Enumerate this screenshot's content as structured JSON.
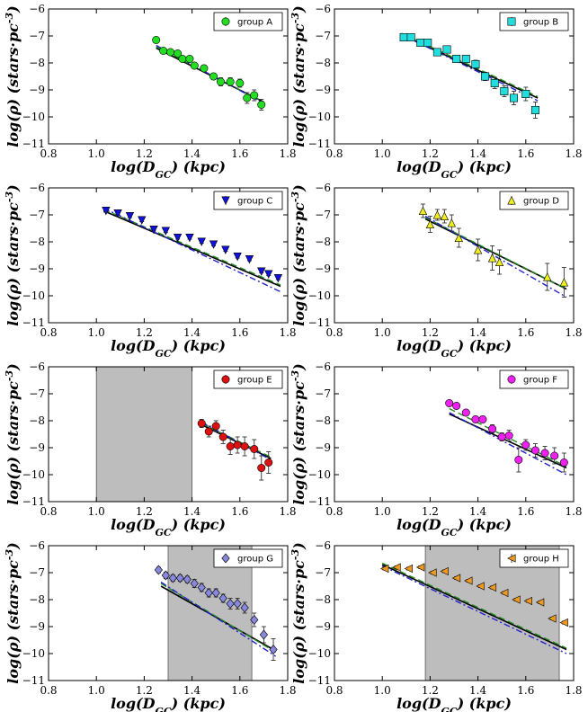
{
  "chart_data": [
    {
      "type": "scatter",
      "legend_label": "group A",
      "marker": "circle",
      "color": "#22dd22",
      "xlabel": "log(D_GC) (kpc)",
      "ylabel": "log(ρ) (stars·pc^-3)",
      "xlim": [
        0.8,
        1.8
      ],
      "ylim": [
        -11,
        -6
      ],
      "xticks": [
        "0.8",
        "1.0",
        "1.2",
        "1.4",
        "1.6",
        "1.8"
      ],
      "yticks": [
        "−6",
        "−7",
        "−8",
        "−9",
        "−10",
        "−11"
      ],
      "legend_position": "top-right",
      "shaded_x": null,
      "points": [
        [
          1.25,
          -7.15,
          0.1
        ],
        [
          1.28,
          -7.55,
          0.1
        ],
        [
          1.31,
          -7.6,
          0.1
        ],
        [
          1.34,
          -7.65,
          0.1
        ],
        [
          1.36,
          -7.85,
          0.1
        ],
        [
          1.39,
          -7.85,
          0.1
        ],
        [
          1.41,
          -8.1,
          0.1
        ],
        [
          1.45,
          -8.2,
          0.12
        ],
        [
          1.49,
          -8.5,
          0.12
        ],
        [
          1.52,
          -8.7,
          0.15
        ],
        [
          1.56,
          -8.7,
          0.15
        ],
        [
          1.6,
          -8.75,
          0.15
        ],
        [
          1.63,
          -9.3,
          0.2
        ],
        [
          1.66,
          -9.2,
          0.2
        ],
        [
          1.69,
          -9.55,
          0.2
        ]
      ],
      "fit_lines": [
        {
          "style": "solid",
          "color": "#000000",
          "x": [
            1.25,
            1.7
          ],
          "y": [
            -7.45,
            -9.45
          ]
        },
        {
          "style": "dashed",
          "color": "#228b22",
          "x": [
            1.25,
            1.7
          ],
          "y": [
            -7.4,
            -9.45
          ]
        },
        {
          "style": "dashdot",
          "color": "#2222cc",
          "x": [
            1.25,
            1.7
          ],
          "y": [
            -7.35,
            -9.5
          ]
        }
      ]
    },
    {
      "type": "scatter",
      "legend_label": "group B",
      "marker": "square",
      "color": "#22dddd",
      "xlabel": "log(D_GC) (kpc)",
      "ylabel": "log(ρ) (stars·pc^-3)",
      "xlim": [
        0.8,
        1.8
      ],
      "ylim": [
        -11,
        -6
      ],
      "xticks": [
        "0.8",
        "1.0",
        "1.2",
        "1.4",
        "1.6",
        "1.8"
      ],
      "yticks": [
        "−6",
        "−7",
        "−8",
        "−9",
        "−10",
        "−11"
      ],
      "legend_position": "top-right",
      "shaded_x": null,
      "points": [
        [
          1.09,
          -7.05,
          0.1
        ],
        [
          1.12,
          -7.05,
          0.1
        ],
        [
          1.16,
          -7.25,
          0.1
        ],
        [
          1.19,
          -7.25,
          0.1
        ],
        [
          1.23,
          -7.6,
          0.12
        ],
        [
          1.27,
          -7.5,
          0.12
        ],
        [
          1.31,
          -7.85,
          0.12
        ],
        [
          1.35,
          -7.85,
          0.12
        ],
        [
          1.39,
          -8.05,
          0.15
        ],
        [
          1.43,
          -8.5,
          0.15
        ],
        [
          1.47,
          -8.75,
          0.2
        ],
        [
          1.51,
          -9.05,
          0.2
        ],
        [
          1.55,
          -9.3,
          0.25
        ],
        [
          1.6,
          -9.15,
          0.25
        ],
        [
          1.64,
          -9.75,
          0.3
        ]
      ],
      "fit_lines": [
        {
          "style": "solid",
          "color": "#000000",
          "x": [
            1.08,
            1.65
          ],
          "y": [
            -6.95,
            -9.3
          ]
        },
        {
          "style": "dashed",
          "color": "#228b22",
          "x": [
            1.08,
            1.65
          ],
          "y": [
            -6.9,
            -9.25
          ]
        },
        {
          "style": "dashdot",
          "color": "#2222cc",
          "x": [
            1.08,
            1.65
          ],
          "y": [
            -6.95,
            -9.4
          ]
        }
      ]
    },
    {
      "type": "scatter",
      "legend_label": "group C",
      "marker": "triangle-down",
      "color": "#1111dd",
      "xlabel": "log(D_GC) (kpc)",
      "ylabel": "log(ρ) (stars·pc^-3)",
      "xlim": [
        0.8,
        1.8
      ],
      "ylim": [
        -11,
        -6
      ],
      "xticks": [
        "0.8",
        "1.0",
        "1.2",
        "1.4",
        "1.6",
        "1.8"
      ],
      "yticks": [
        "−6",
        "−7",
        "−8",
        "−9",
        "−10",
        "−11"
      ],
      "legend_position": "top-right",
      "shaded_x": null,
      "points": [
        [
          1.04,
          -6.85,
          0.05
        ],
        [
          1.09,
          -6.95,
          0.05
        ],
        [
          1.14,
          -7.05,
          0.05
        ],
        [
          1.19,
          -7.2,
          0.05
        ],
        [
          1.24,
          -7.55,
          0.05
        ],
        [
          1.29,
          -7.6,
          0.05
        ],
        [
          1.34,
          -7.85,
          0.05
        ],
        [
          1.39,
          -7.85,
          0.05
        ],
        [
          1.44,
          -8.0,
          0.05
        ],
        [
          1.49,
          -8.1,
          0.05
        ],
        [
          1.54,
          -8.3,
          0.05
        ],
        [
          1.59,
          -8.55,
          0.05
        ],
        [
          1.64,
          -8.65,
          0.05
        ],
        [
          1.69,
          -9.1,
          0.05
        ],
        [
          1.72,
          -9.2,
          0.05
        ],
        [
          1.76,
          -9.35,
          0.05
        ]
      ],
      "fit_lines": [
        {
          "style": "solid",
          "color": "#000000",
          "x": [
            1.03,
            1.77
          ],
          "y": [
            -6.85,
            -9.65
          ]
        },
        {
          "style": "dashed",
          "color": "#228b22",
          "x": [
            1.03,
            1.77
          ],
          "y": [
            -6.8,
            -9.6
          ]
        },
        {
          "style": "dashdot",
          "color": "#2222cc",
          "x": [
            1.03,
            1.77
          ],
          "y": [
            -6.75,
            -9.85
          ]
        }
      ]
    },
    {
      "type": "scatter",
      "legend_label": "group D",
      "marker": "triangle-up",
      "color": "#eeee22",
      "xlabel": "log(D_GC) (kpc)",
      "ylabel": "log(ρ) (stars·pc^-3)",
      "xlim": [
        0.8,
        1.8
      ],
      "ylim": [
        -11,
        -6
      ],
      "xticks": [
        "0.8",
        "1.0",
        "1.2",
        "1.4",
        "1.6",
        "1.8"
      ],
      "yticks": [
        "−6",
        "−7",
        "−8",
        "−9",
        "−10",
        "−11"
      ],
      "legend_position": "top-right",
      "shaded_x": null,
      "points": [
        [
          1.17,
          -6.85,
          0.25
        ],
        [
          1.2,
          -7.35,
          0.3
        ],
        [
          1.23,
          -7.0,
          0.2
        ],
        [
          1.26,
          -7.05,
          0.25
        ],
        [
          1.29,
          -7.3,
          0.3
        ],
        [
          1.32,
          -7.85,
          0.35
        ],
        [
          1.4,
          -8.3,
          0.4
        ],
        [
          1.46,
          -8.6,
          0.45
        ],
        [
          1.49,
          -8.75,
          0.45
        ],
        [
          1.69,
          -9.3,
          0.5
        ],
        [
          1.76,
          -9.5,
          0.55
        ]
      ],
      "fit_lines": [
        {
          "style": "solid",
          "color": "#000000",
          "x": [
            1.18,
            1.77
          ],
          "y": [
            -7.15,
            -9.75
          ]
        },
        {
          "style": "dashed",
          "color": "#228b22",
          "x": [
            1.18,
            1.77
          ],
          "y": [
            -7.1,
            -9.75
          ]
        },
        {
          "style": "dashdot",
          "color": "#2222cc",
          "x": [
            1.18,
            1.77
          ],
          "y": [
            -7.05,
            -10.05
          ]
        }
      ]
    },
    {
      "type": "scatter",
      "legend_label": "group E",
      "marker": "circle",
      "color": "#dd1111",
      "xlabel": "log(D_GC) (kpc)",
      "ylabel": "log(ρ) (stars·pc^-3)",
      "xlim": [
        0.8,
        1.8
      ],
      "ylim": [
        -11,
        -6
      ],
      "xticks": [
        "0.8",
        "1.0",
        "1.2",
        "1.4",
        "1.6",
        "1.8"
      ],
      "yticks": [
        "−6",
        "−7",
        "−8",
        "−9",
        "−10",
        "−11"
      ],
      "legend_position": "top-right",
      "shaded_x": [
        1.0,
        1.4
      ],
      "points": [
        [
          1.44,
          -8.1,
          0.15
        ],
        [
          1.47,
          -8.4,
          0.2
        ],
        [
          1.5,
          -8.2,
          0.2
        ],
        [
          1.53,
          -8.6,
          0.25
        ],
        [
          1.56,
          -8.95,
          0.3
        ],
        [
          1.59,
          -8.9,
          0.3
        ],
        [
          1.62,
          -8.95,
          0.35
        ],
        [
          1.66,
          -9.05,
          0.35
        ],
        [
          1.69,
          -9.75,
          0.45
        ],
        [
          1.72,
          -9.55,
          0.4
        ]
      ],
      "fit_lines": [
        {
          "style": "solid",
          "color": "#000000",
          "x": [
            1.44,
            1.73
          ],
          "y": [
            -8.15,
            -9.4
          ]
        },
        {
          "style": "dashed",
          "color": "#228b22",
          "x": [
            1.44,
            1.73
          ],
          "y": [
            -8.1,
            -9.35
          ]
        },
        {
          "style": "dashdot",
          "color": "#2222cc",
          "x": [
            1.44,
            1.73
          ],
          "y": [
            -8.05,
            -9.45
          ]
        }
      ]
    },
    {
      "type": "scatter",
      "legend_label": "group F",
      "marker": "circle",
      "color": "#ee22ee",
      "xlabel": "log(D_GC) (kpc)",
      "ylabel": "log(ρ) (stars·pc^-3)",
      "xlim": [
        0.8,
        1.8
      ],
      "ylim": [
        -11,
        -6
      ],
      "xticks": [
        "0.8",
        "1.0",
        "1.2",
        "1.4",
        "1.6",
        "1.8"
      ],
      "yticks": [
        "−6",
        "−7",
        "−8",
        "−9",
        "−10",
        "−11"
      ],
      "legend_position": "top-right",
      "shaded_x": null,
      "points": [
        [
          1.28,
          -7.35,
          0.08
        ],
        [
          1.31,
          -7.45,
          0.1
        ],
        [
          1.35,
          -7.7,
          0.1
        ],
        [
          1.39,
          -7.95,
          0.12
        ],
        [
          1.42,
          -7.95,
          0.12
        ],
        [
          1.46,
          -8.3,
          0.15
        ],
        [
          1.5,
          -8.6,
          0.15
        ],
        [
          1.53,
          -8.55,
          0.2
        ],
        [
          1.57,
          -9.45,
          0.45
        ],
        [
          1.6,
          -8.9,
          0.2
        ],
        [
          1.64,
          -9.1,
          0.25
        ],
        [
          1.68,
          -9.2,
          0.25
        ],
        [
          1.72,
          -9.3,
          0.3
        ],
        [
          1.76,
          -9.55,
          0.35
        ]
      ],
      "fit_lines": [
        {
          "style": "solid",
          "color": "#000000",
          "x": [
            1.28,
            1.77
          ],
          "y": [
            -7.75,
            -9.75
          ]
        },
        {
          "style": "dashed",
          "color": "#228b22",
          "x": [
            1.28,
            1.77
          ],
          "y": [
            -7.55,
            -9.7
          ]
        },
        {
          "style": "dashdot",
          "color": "#2222cc",
          "x": [
            1.28,
            1.77
          ],
          "y": [
            -7.7,
            -10.0
          ]
        }
      ]
    },
    {
      "type": "scatter",
      "legend_label": "group G",
      "marker": "diamond",
      "color": "#8888dd",
      "xlabel": "log(D_GC) (kpc)",
      "ylabel": "log(ρ) (stars·pc^-3)",
      "xlim": [
        0.8,
        1.8
      ],
      "ylim": [
        -11,
        -6
      ],
      "xticks": [
        "0.8",
        "1.0",
        "1.2",
        "1.4",
        "1.6",
        "1.8"
      ],
      "yticks": [
        "−6",
        "−7",
        "−8",
        "−9",
        "−10",
        "−11"
      ],
      "legend_position": "top-right",
      "shaded_x": [
        1.3,
        1.65
      ],
      "points": [
        [
          1.26,
          -6.9,
          0.1
        ],
        [
          1.29,
          -7.1,
          0.12
        ],
        [
          1.32,
          -7.2,
          0.12
        ],
        [
          1.35,
          -7.2,
          0.12
        ],
        [
          1.38,
          -7.25,
          0.12
        ],
        [
          1.41,
          -7.4,
          0.15
        ],
        [
          1.44,
          -7.55,
          0.15
        ],
        [
          1.47,
          -7.75,
          0.15
        ],
        [
          1.5,
          -7.75,
          0.15
        ],
        [
          1.53,
          -7.95,
          0.15
        ],
        [
          1.56,
          -8.15,
          0.2
        ],
        [
          1.59,
          -8.15,
          0.2
        ],
        [
          1.62,
          -8.3,
          0.2
        ],
        [
          1.66,
          -8.75,
          0.25
        ],
        [
          1.7,
          -9.3,
          0.3
        ],
        [
          1.74,
          -9.85,
          0.4
        ]
      ],
      "fit_lines": [
        {
          "style": "solid",
          "color": "#000000",
          "x": [
            1.27,
            1.75
          ],
          "y": [
            -7.5,
            -9.9
          ]
        },
        {
          "style": "dashed",
          "color": "#228b22",
          "x": [
            1.27,
            1.75
          ],
          "y": [
            -7.4,
            -9.95
          ]
        },
        {
          "style": "dashdot",
          "color": "#2222cc",
          "x": [
            1.27,
            1.75
          ],
          "y": [
            -7.35,
            -10.1
          ]
        }
      ]
    },
    {
      "type": "scatter",
      "legend_label": "group H",
      "marker": "triangle-left",
      "color": "#ee9922",
      "xlabel": "log(D_GC) (kpc)",
      "ylabel": "log(ρ) (stars·pc^-3)",
      "xlim": [
        0.8,
        1.8
      ],
      "ylim": [
        -11,
        -6
      ],
      "xticks": [
        "0.8",
        "1.0",
        "1.2",
        "1.4",
        "1.6",
        "1.8"
      ],
      "yticks": [
        "−6",
        "−7",
        "−8",
        "−9",
        "−10",
        "−11"
      ],
      "legend_position": "top-right",
      "shaded_x": [
        1.18,
        1.74
      ],
      "points": [
        [
          1.01,
          -6.85,
          0.05
        ],
        [
          1.06,
          -6.8,
          0.05
        ],
        [
          1.11,
          -6.85,
          0.05
        ],
        [
          1.16,
          -6.8,
          0.05
        ],
        [
          1.21,
          -7.0,
          0.05
        ],
        [
          1.26,
          -6.95,
          0.05
        ],
        [
          1.31,
          -7.2,
          0.05
        ],
        [
          1.36,
          -7.3,
          0.05
        ],
        [
          1.41,
          -7.5,
          0.05
        ],
        [
          1.46,
          -7.55,
          0.05
        ],
        [
          1.51,
          -7.75,
          0.05
        ],
        [
          1.56,
          -8.0,
          0.05
        ],
        [
          1.61,
          -8.05,
          0.05
        ],
        [
          1.66,
          -8.1,
          0.05
        ],
        [
          1.71,
          -8.7,
          0.05
        ],
        [
          1.76,
          -8.85,
          0.05
        ]
      ],
      "fit_lines": [
        {
          "style": "solid",
          "color": "#000000",
          "x": [
            1.0,
            1.77
          ],
          "y": [
            -6.7,
            -9.85
          ]
        },
        {
          "style": "dashed",
          "color": "#228b22",
          "x": [
            1.0,
            1.77
          ],
          "y": [
            -6.65,
            -9.8
          ]
        },
        {
          "style": "dashdot",
          "color": "#2222cc",
          "x": [
            1.0,
            1.77
          ],
          "y": [
            -6.75,
            -10.0
          ]
        }
      ]
    }
  ]
}
